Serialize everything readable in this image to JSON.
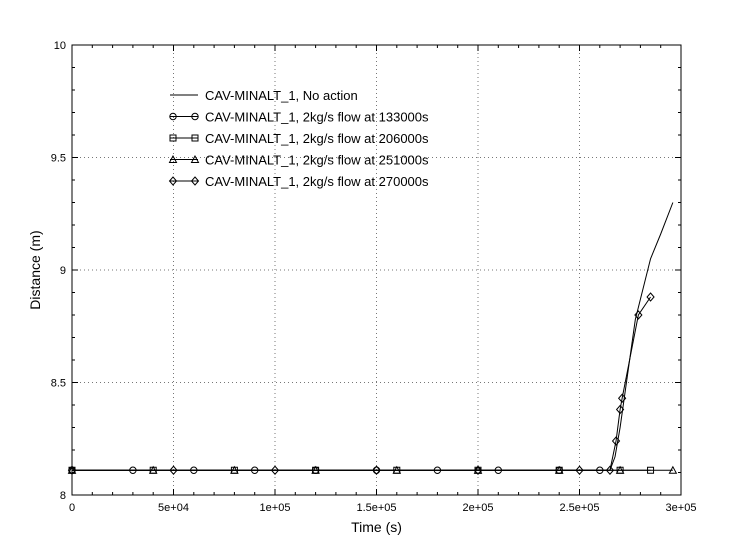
{
  "chart_data": {
    "type": "line",
    "title": "",
    "xlabel": "Time (s)",
    "ylabel": "Distance (m)",
    "xlim": [
      0,
      300000
    ],
    "ylim": [
      8,
      10
    ],
    "grid": true,
    "legend_position": "top-left",
    "x_ticks": [
      0,
      50000,
      100000,
      150000,
      200000,
      250000,
      300000
    ],
    "x_tick_labels": [
      "0",
      "5e+04",
      "1e+05",
      "1.5e+05",
      "2e+05",
      "2.5e+05",
      "3e+05"
    ],
    "y_ticks": [
      8,
      8.5,
      9,
      9.5,
      10
    ],
    "y_tick_labels": [
      "8",
      "8.5",
      "9",
      "9.5",
      "10"
    ],
    "series": [
      {
        "name": "CAV-MINALT_1, No action",
        "marker": "none",
        "x": [
          0,
          100000,
          200000,
          265000,
          267500,
          270000,
          272500,
          275000,
          277500,
          280000,
          285000,
          290000,
          296000
        ],
        "y": [
          8.11,
          8.11,
          8.11,
          8.11,
          8.17,
          8.3,
          8.46,
          8.62,
          8.78,
          8.87,
          9.05,
          9.16,
          9.3
        ]
      },
      {
        "name": "CAV-MINALT_1, 2kg/s flow at 133000s",
        "marker": "circle",
        "x": [
          0,
          30000,
          60000,
          90000,
          120000,
          150000,
          180000,
          210000,
          240000,
          260000
        ],
        "y": [
          8.11,
          8.11,
          8.11,
          8.11,
          8.11,
          8.11,
          8.11,
          8.11,
          8.11,
          8.11
        ]
      },
      {
        "name": "CAV-MINALT_1, 2kg/s flow at 206000s",
        "marker": "square",
        "x": [
          0,
          40000,
          80000,
          120000,
          160000,
          200000,
          240000,
          270000,
          285000
        ],
        "y": [
          8.11,
          8.11,
          8.11,
          8.11,
          8.11,
          8.11,
          8.11,
          8.11,
          8.11
        ]
      },
      {
        "name": "CAV-MINALT_1, 2kg/s flow at 251000s",
        "marker": "triangle",
        "x": [
          0,
          40000,
          80000,
          120000,
          160000,
          200000,
          240000,
          270000,
          296000
        ],
        "y": [
          8.11,
          8.11,
          8.11,
          8.11,
          8.11,
          8.11,
          8.11,
          8.11,
          8.11
        ]
      },
      {
        "name": "CAV-MINALT_1, 2kg/s flow at 270000s",
        "marker": "diamond",
        "x": [
          0,
          50000,
          100000,
          150000,
          200000,
          250000,
          265000,
          268000,
          270000,
          271000,
          279000,
          285000
        ],
        "y": [
          8.11,
          8.11,
          8.11,
          8.11,
          8.11,
          8.11,
          8.11,
          8.24,
          8.38,
          8.43,
          8.8,
          8.88
        ]
      }
    ]
  }
}
